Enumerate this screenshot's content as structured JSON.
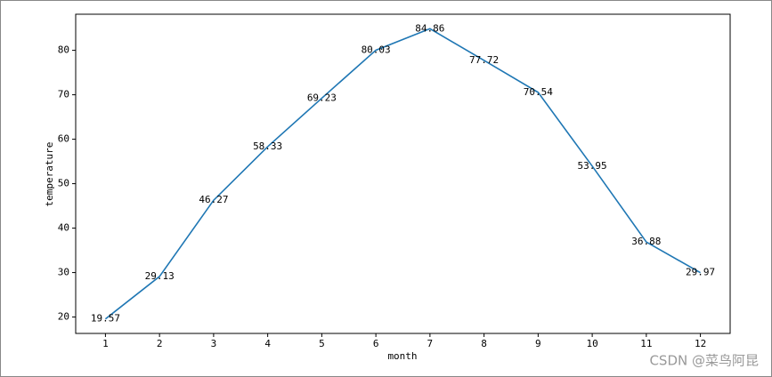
{
  "chart_data": {
    "type": "line",
    "xlabel": "month",
    "ylabel": "temperature",
    "x": [
      1,
      2,
      3,
      4,
      5,
      6,
      7,
      8,
      9,
      10,
      11,
      12
    ],
    "series": [
      {
        "color": "#1f77b4",
        "values": [
          19.57,
          29.13,
          46.27,
          58.33,
          69.23,
          80.03,
          84.86,
          77.72,
          70.54,
          53.95,
          36.88,
          29.97
        ]
      }
    ],
    "xlim": [
      0.45,
      12.55
    ],
    "xticks": [
      1,
      2,
      3,
      4,
      5,
      6,
      7,
      8,
      9,
      10,
      11,
      12
    ],
    "ylim": [
      16.31,
      88.12
    ],
    "yticks": [
      20,
      30,
      40,
      50,
      60,
      70,
      80
    ],
    "data_labels": true
  },
  "watermark": "CSDN @菜鸟阿昆"
}
